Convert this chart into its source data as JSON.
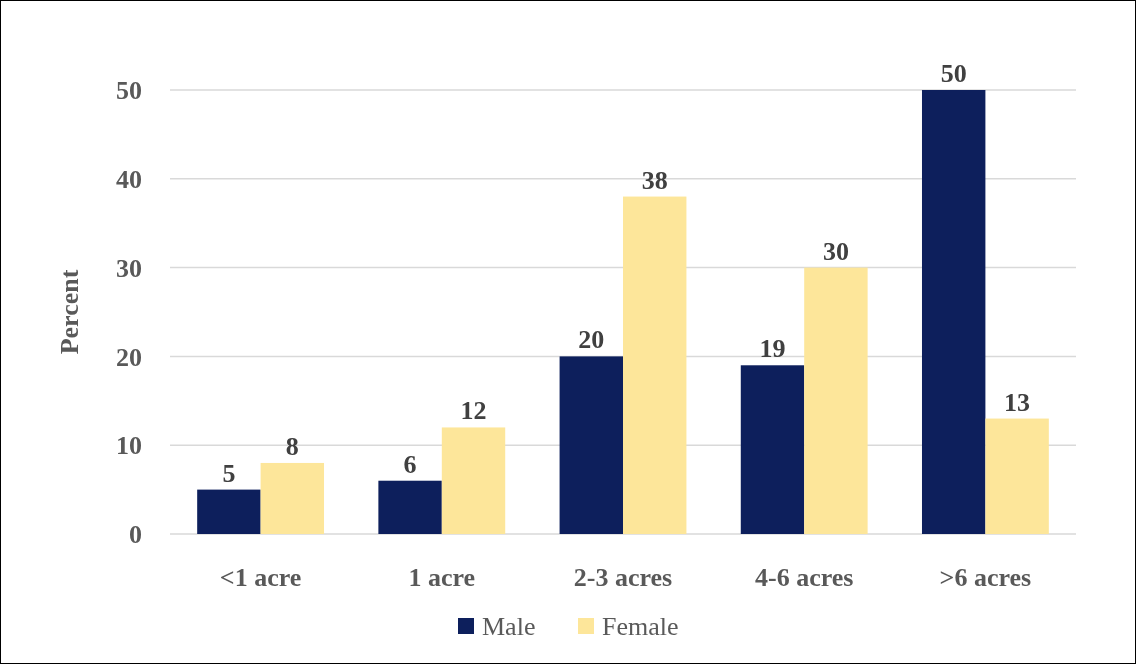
{
  "chart_data": {
    "type": "bar",
    "ylabel": "Percent",
    "categories": [
      "<1 acre",
      "1 acre",
      "2-3 acres",
      "4-6 acres",
      ">6 acres"
    ],
    "series": [
      {
        "name": "Male",
        "color": "#0d1f5c",
        "values": [
          5,
          6,
          20,
          19,
          50
        ]
      },
      {
        "name": "Female",
        "color": "#fde69a",
        "values": [
          8,
          12,
          38,
          30,
          13
        ]
      }
    ],
    "ylim": [
      0,
      50
    ],
    "yticks": [
      0,
      10,
      20,
      30,
      40,
      50
    ],
    "grid": "y",
    "legend": "bottom",
    "data_labels": true
  }
}
